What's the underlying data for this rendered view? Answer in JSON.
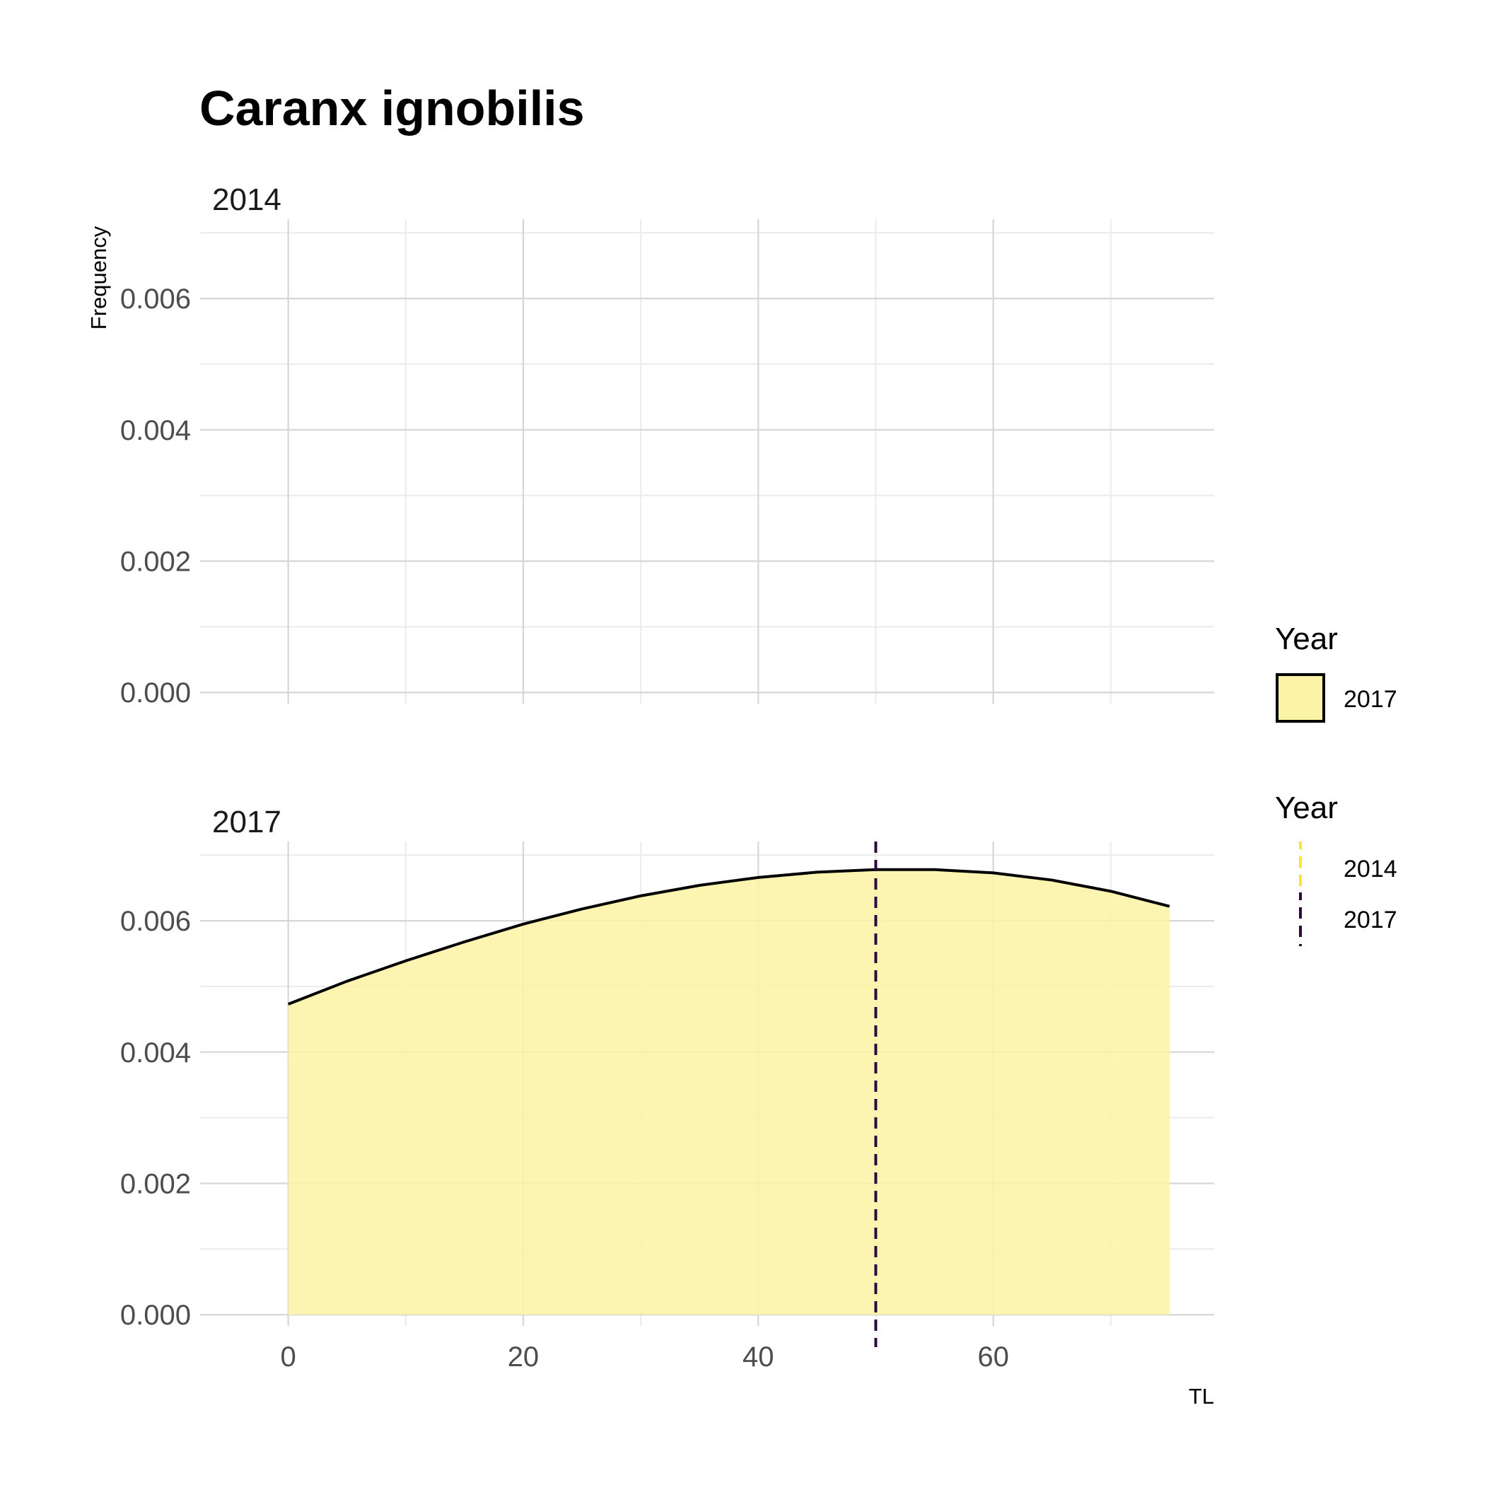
{
  "chart_data": {
    "type": "area",
    "title": "Caranx ignobilis",
    "xlabel": "TL",
    "ylabel": "Frequency",
    "xlim": [
      -7.5,
      78.8
    ],
    "ylim": [
      -0.00017,
      0.0071
    ],
    "x_ticks": [
      0,
      20,
      40,
      60
    ],
    "x_tick_labels": [
      "0",
      "20",
      "40",
      "60"
    ],
    "y_ticks": [
      0.0,
      0.002,
      0.004,
      0.006
    ],
    "y_tick_labels": [
      "0.000",
      "0.002",
      "0.004",
      "0.006"
    ],
    "grid": true,
    "legend_position": "right",
    "panels": [
      {
        "strip": "2014",
        "series": []
      },
      {
        "strip": "2017",
        "series": [
          {
            "name": "2017",
            "fill": "#fbf3a5",
            "line_color": "#000000",
            "x": [
              0,
              5,
              10,
              15,
              20,
              25,
              30,
              35,
              40,
              45,
              50,
              55,
              60,
              65,
              70,
              75
            ],
            "y": [
              0.00473,
              0.00508,
              0.00539,
              0.00568,
              0.00595,
              0.00618,
              0.00638,
              0.00654,
              0.00666,
              0.00674,
              0.00678,
              0.00678,
              0.00673,
              0.00662,
              0.00645,
              0.00622
            ]
          }
        ],
        "vlines": [
          {
            "name": "2017",
            "x": 50,
            "color": "#2d0a3e",
            "style": "dashed"
          }
        ]
      }
    ],
    "legends": [
      {
        "title": "Year",
        "type": "fill",
        "items": [
          {
            "label": "2017",
            "color": "#fbf3a5"
          }
        ]
      },
      {
        "title": "Year",
        "type": "linetype",
        "items": [
          {
            "label": "2014",
            "color": "#fde725"
          },
          {
            "label": "2017",
            "color": "#2d0a3e"
          }
        ]
      }
    ]
  }
}
